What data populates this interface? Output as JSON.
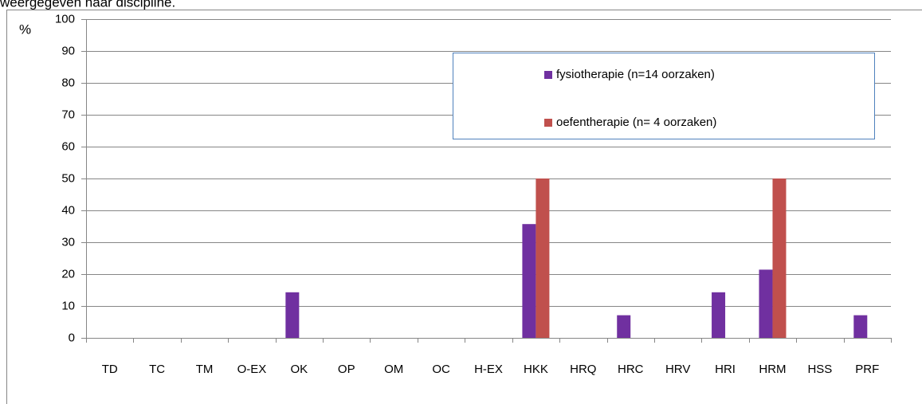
{
  "chart_data": {
    "type": "bar",
    "title": "weergegeven naar discipline.",
    "y_label": "%",
    "categories": [
      "TD",
      "TC",
      "TM",
      "O-EX",
      "OK",
      "OP",
      "OM",
      "OC",
      "H-EX",
      "HKK",
      "HRQ",
      "HRC",
      "HRV",
      "HRI",
      "HRM",
      "HSS",
      "PRF"
    ],
    "series": [
      {
        "name": "fysiotherapie (n=14 oorzaken)",
        "color": "#7030a0",
        "values": [
          0,
          0,
          0,
          0,
          14.3,
          0,
          0,
          0,
          0,
          35.7,
          0,
          7.1,
          0,
          14.3,
          21.4,
          0,
          7.1
        ]
      },
      {
        "name": "oefentherapie (n= 4 oorzaken)",
        "color": "#c0504d",
        "values": [
          0,
          0,
          0,
          0,
          0,
          0,
          0,
          0,
          0,
          50,
          0,
          0,
          0,
          0,
          50,
          0,
          0
        ]
      }
    ],
    "ylim": [
      0,
      100
    ],
    "yticks": [
      0,
      10,
      20,
      30,
      40,
      50,
      60,
      70,
      80,
      90,
      100
    ],
    "grid": true,
    "legend": "upper right"
  }
}
